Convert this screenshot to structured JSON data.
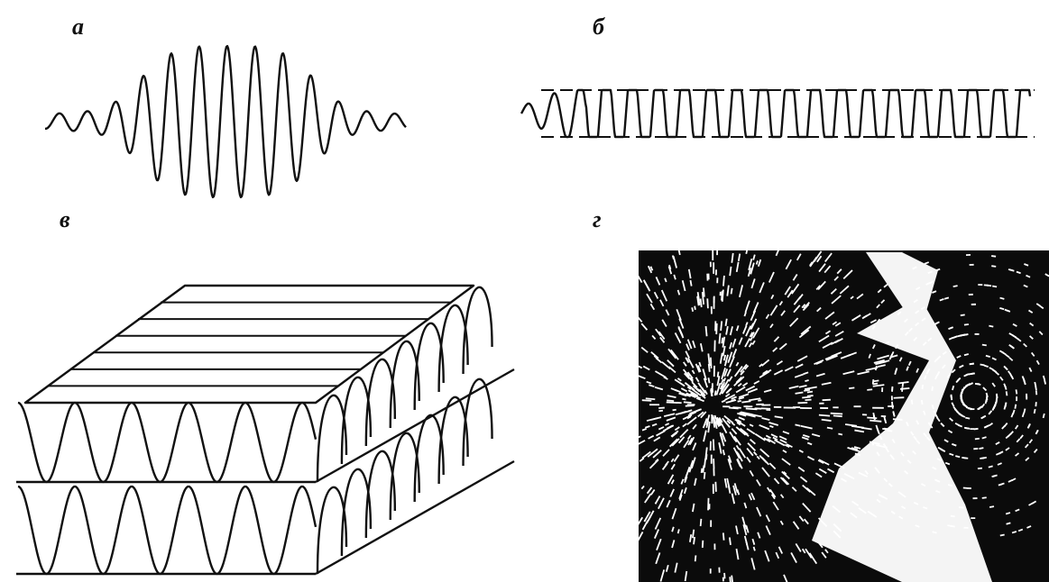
{
  "panels": [
    {
      "label": "а"
    },
    {
      "label": "б"
    },
    {
      "label": "в"
    },
    {
      "label": "г"
    }
  ]
}
